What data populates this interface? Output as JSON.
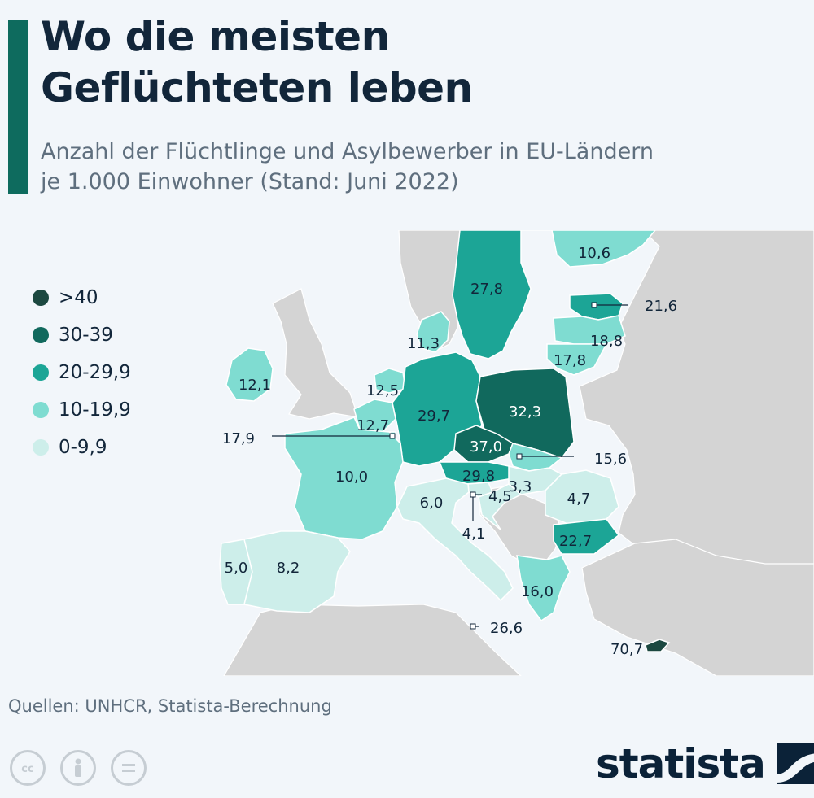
{
  "header": {
    "title_line1": "Wo die meisten",
    "title_line2": "Geflüchteten leben",
    "subtitle_line1": "Anzahl der Flüchtlinge und Asylbewerber in EU-Ländern",
    "subtitle_line2": "je 1.000 Einwohner (Stand: Juni 2022)"
  },
  "legend": [
    {
      "label": ">40",
      "color": "#1c4840"
    },
    {
      "label": "30-39",
      "color": "#11695d"
    },
    {
      "label": "20-29,9",
      "color": "#1ca596"
    },
    {
      "label": "10-19,9",
      "color": "#7fdcd1"
    },
    {
      "label": "0-9,9",
      "color": "#cdeeea"
    }
  ],
  "colors": {
    "background": "#f2f6fa",
    "sea": "#f2f6fa",
    "non_eu_land": "#d4d4d4",
    "border": "#ffffff",
    "label_dark": "#12263a",
    "label_light": "#ffffff",
    "accent": "#0e6b5e"
  },
  "countries": [
    {
      "name": "Sweden",
      "value": "27,8",
      "cls": "20-29,9"
    },
    {
      "name": "Finland",
      "value": "10,6",
      "cls": "10-19,9"
    },
    {
      "name": "Estonia",
      "value": "21,6",
      "cls": "20-29,9"
    },
    {
      "name": "Latvia",
      "value": "18,8",
      "cls": "10-19,9"
    },
    {
      "name": "Lithuania",
      "value": "17,8",
      "cls": "10-19,9"
    },
    {
      "name": "Denmark",
      "value": "11,3",
      "cls": "10-19,9"
    },
    {
      "name": "Ireland",
      "value": "12,1",
      "cls": "10-19,9"
    },
    {
      "name": "Netherlands",
      "value": "12,5",
      "cls": "10-19,9"
    },
    {
      "name": "Belgium",
      "value": "12,7",
      "cls": "10-19,9"
    },
    {
      "name": "Luxembourg",
      "value": "17,9",
      "cls": "10-19,9"
    },
    {
      "name": "Germany",
      "value": "29,7",
      "cls": "20-29,9"
    },
    {
      "name": "Poland",
      "value": "32,3",
      "cls": "30-39"
    },
    {
      "name": "Czechia",
      "value": "37,0",
      "cls": "30-39"
    },
    {
      "name": "Slovakia",
      "value": "15,6",
      "cls": "10-19,9"
    },
    {
      "name": "Austria",
      "value": "29,8",
      "cls": "20-29,9"
    },
    {
      "name": "Hungary",
      "value": "3,3",
      "cls": "0-9,9"
    },
    {
      "name": "France",
      "value": "10,0",
      "cls": "10-19,9"
    },
    {
      "name": "Slovenia",
      "value": "4,5",
      "cls": "0-9,9"
    },
    {
      "name": "Croatia",
      "value": "4,1",
      "cls": "0-9,9"
    },
    {
      "name": "Italy",
      "value": "6,0",
      "cls": "0-9,9"
    },
    {
      "name": "Romania",
      "value": "4,7",
      "cls": "0-9,9"
    },
    {
      "name": "Bulgaria",
      "value": "22,7",
      "cls": "20-29,9"
    },
    {
      "name": "Greece",
      "value": "16,0",
      "cls": "10-19,9"
    },
    {
      "name": "Malta",
      "value": "26,6",
      "cls": "20-29,9"
    },
    {
      "name": "Cyprus",
      "value": "70,7",
      "cls": ">40"
    },
    {
      "name": "Portugal",
      "value": "5,0",
      "cls": "0-9,9"
    },
    {
      "name": "Spain",
      "value": "8,2",
      "cls": "0-9,9"
    }
  ],
  "footer": {
    "source": "Quellen: UNHCR, Statista-Berechnung",
    "license_icons": [
      "cc-icon",
      "by-icon",
      "nd-icon"
    ],
    "brand": "statista"
  }
}
